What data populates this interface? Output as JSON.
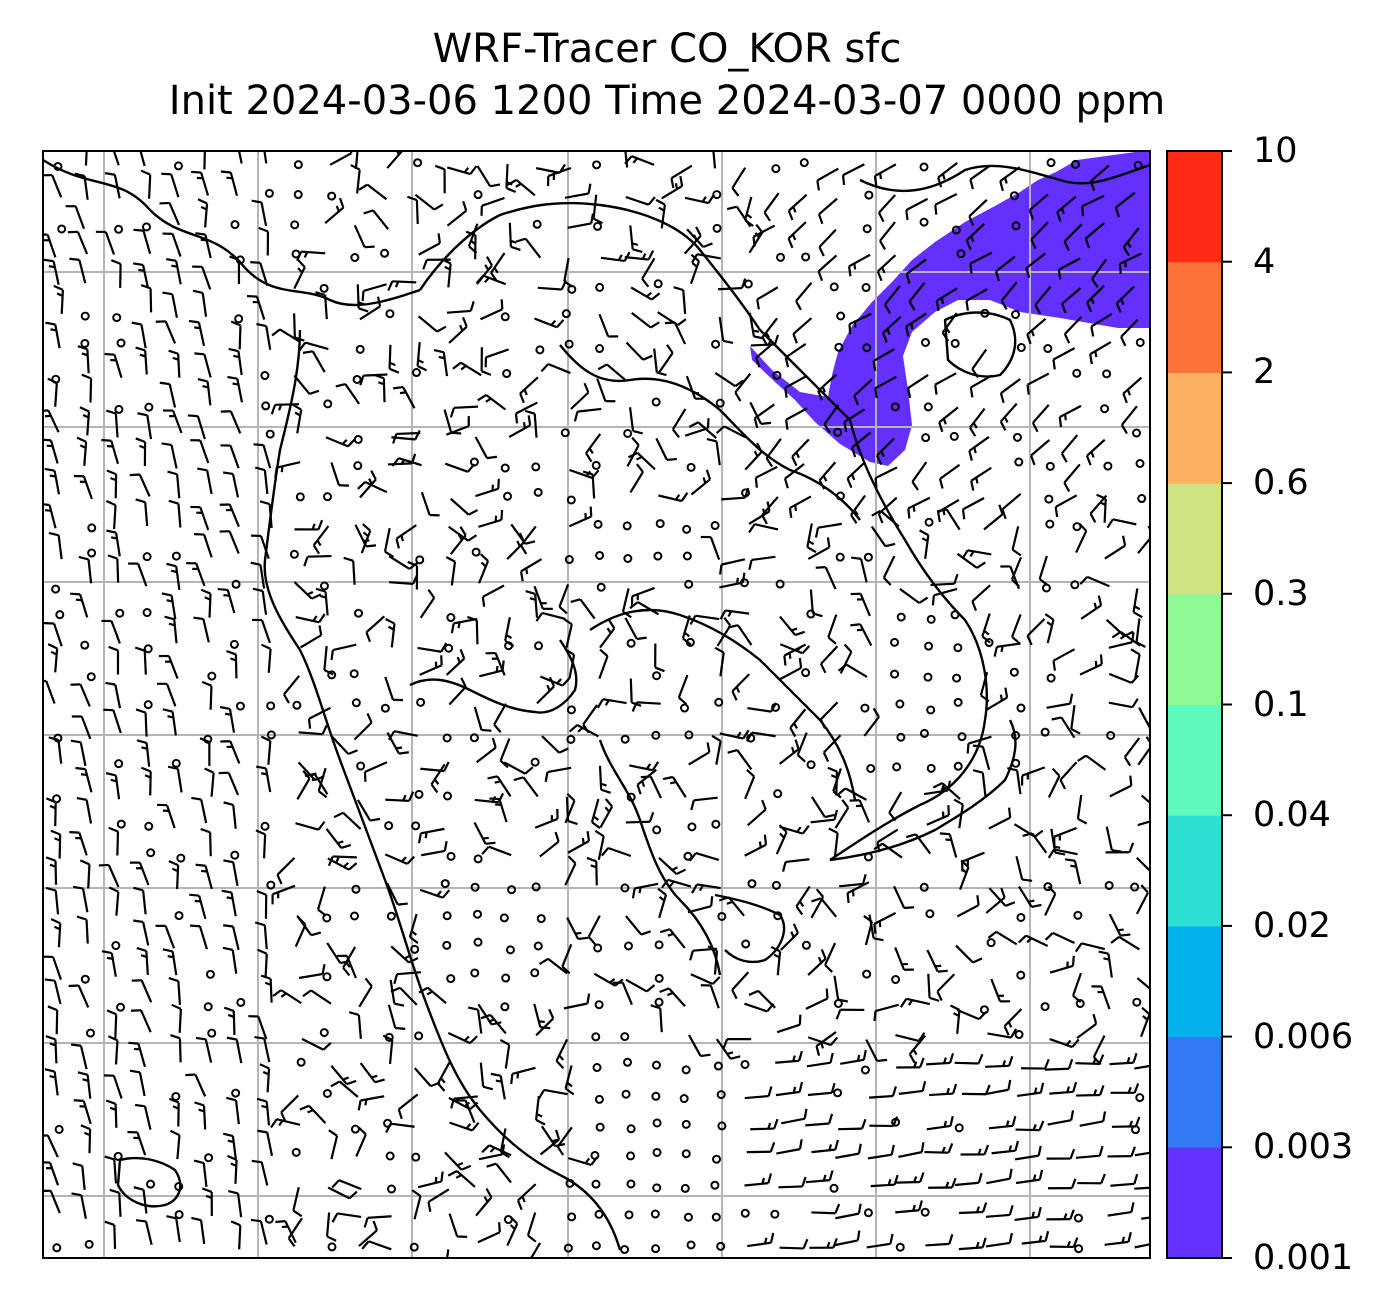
{
  "title": {
    "line1": "WRF-Tracer CO_KOR sfc",
    "line2": "Init 2024-03-06 1200 Time 2024-03-07 0000 ppm"
  },
  "colorbar": {
    "levels": [
      "0.001",
      "0.003",
      "0.006",
      "0.02",
      "0.04",
      "0.1",
      "0.3",
      "0.6",
      "2",
      "4",
      "10"
    ],
    "colors": [
      "#6330ff",
      "#3579f2",
      "#03b2ea",
      "#2ee0d4",
      "#5ffbbc",
      "#91f993",
      "#cfe385",
      "#fcb160",
      "#fd7237",
      "#ff2a16"
    ]
  },
  "tracer_plume": {
    "level_band": "0.001-0.003",
    "color": "#6330ff"
  },
  "map": {
    "barb_color": "#000000",
    "coastline_color": "#000000",
    "gridline_color": "#b5b5b5",
    "frame_color": "#000000"
  }
}
